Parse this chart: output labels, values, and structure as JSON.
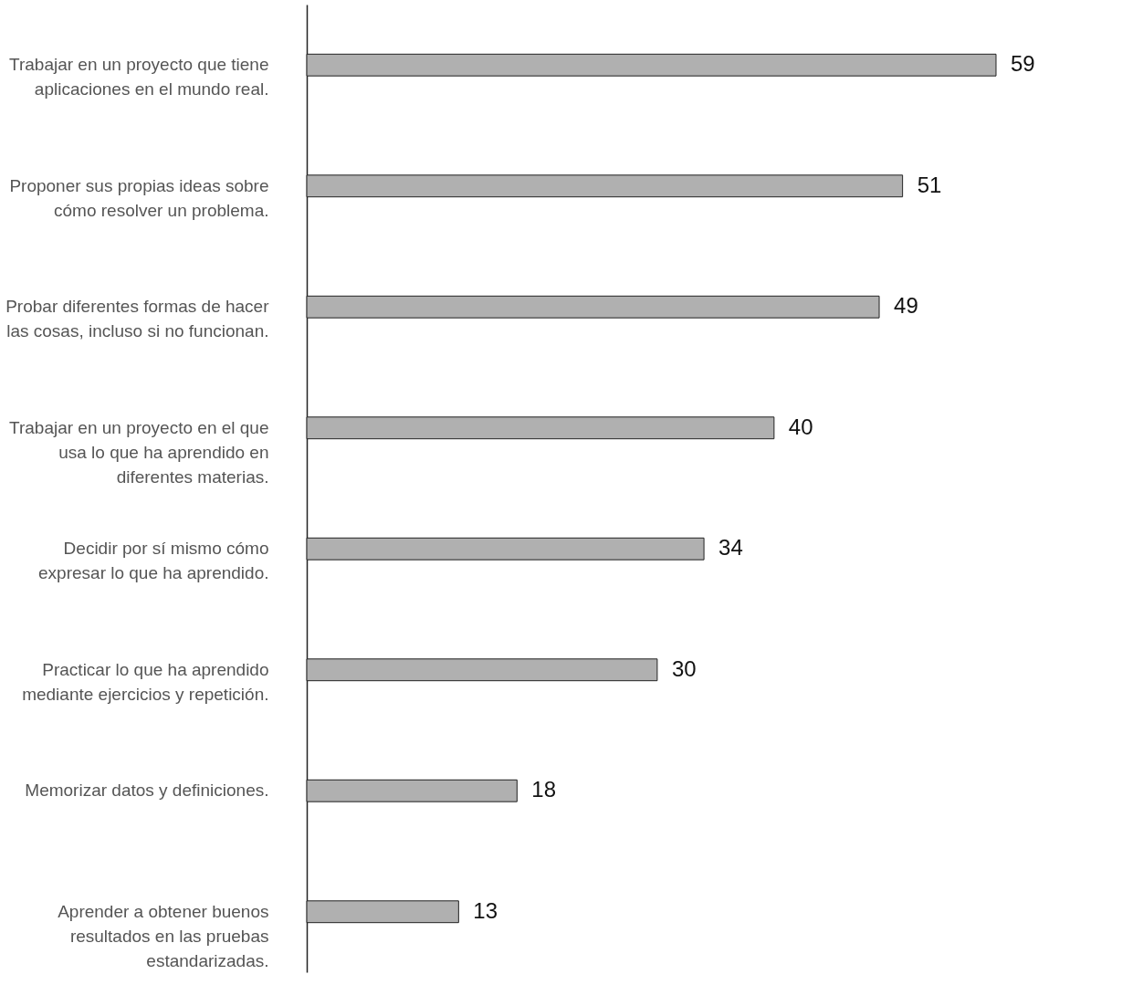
{
  "chart_data": {
    "type": "bar",
    "orientation": "horizontal",
    "categories": [
      "Trabajar en un proyecto que tiene\naplicaciones en el mundo real.",
      "Proponer sus propias ideas sobre\ncómo resolver un problema.",
      "Probar diferentes formas de hacer\nlas cosas, incluso si no funcionan.",
      "Trabajar en un proyecto en el que\nusa lo que ha aprendido en\ndiferentes materias.",
      "Decidir por sí mismo cómo\nexpresar lo que ha aprendido.",
      "Practicar lo que ha aprendido\nmediante ejercicios y repetición.",
      "Memorizar datos y definiciones.",
      "Aprender a obtener buenos\nresultados en las pruebas\nestandarizadas."
    ],
    "values": [
      59,
      51,
      49,
      40,
      34,
      30,
      18,
      13
    ],
    "color": "#b0b0b0",
    "data_labels": true,
    "grid": false,
    "tick_labels": "y"
  }
}
